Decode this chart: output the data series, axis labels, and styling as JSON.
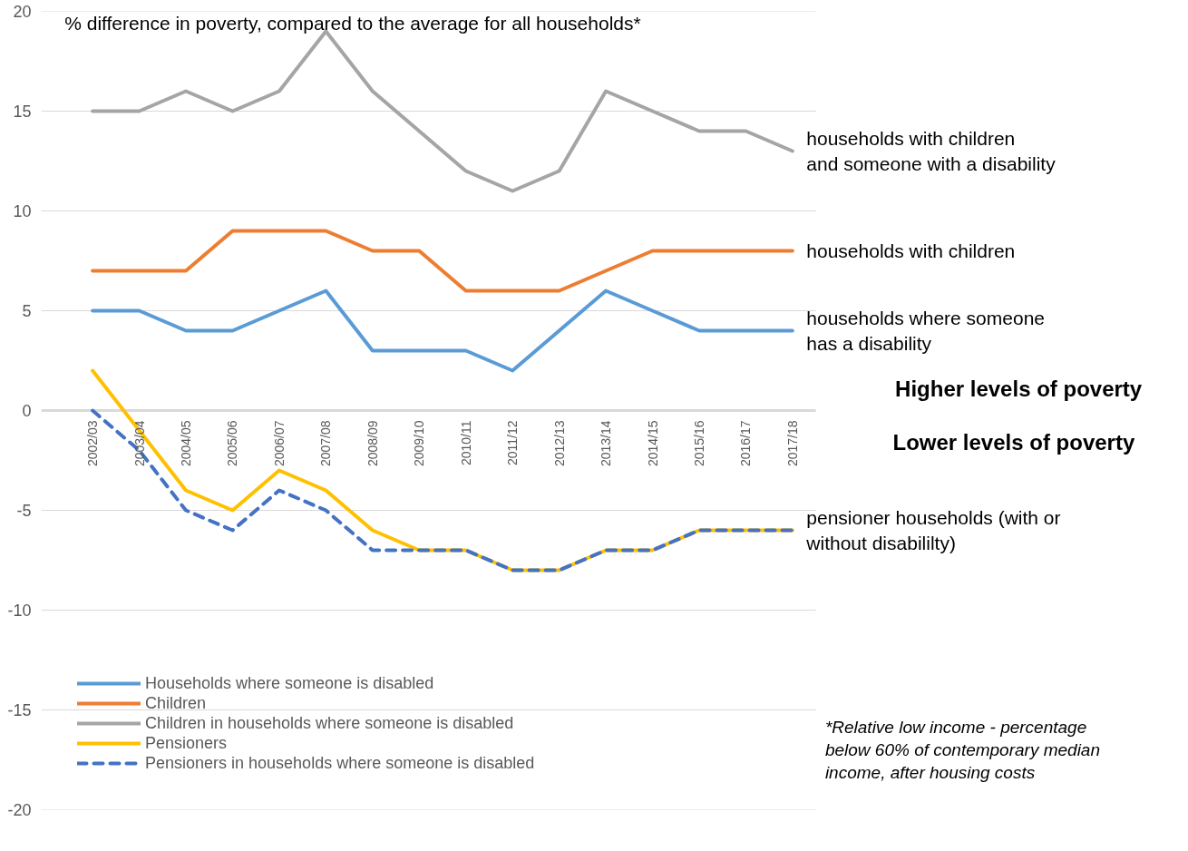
{
  "chart_data": {
    "type": "line",
    "title": "% difference in poverty, compared to the average for all households*",
    "categories": [
      "2002/03",
      "2003/04",
      "2004/05",
      "2005/06",
      "2006/07",
      "2007/08",
      "2008/09",
      "2009/10",
      "2010/11",
      "2011/12",
      "2012/13",
      "2013/14",
      "2014/15",
      "2015/16",
      "2016/17",
      "2017/18"
    ],
    "series": [
      {
        "name": "Households where someone is disabled",
        "color": "#5b9bd5",
        "values": [
          5,
          5,
          4,
          4,
          5,
          6,
          3,
          3,
          3,
          2,
          4,
          6,
          5,
          4,
          4,
          4
        ]
      },
      {
        "name": "Children",
        "color": "#ed7d31",
        "values": [
          7,
          7,
          7,
          9,
          9,
          9,
          8,
          8,
          6,
          6,
          6,
          7,
          8,
          8,
          8,
          8
        ]
      },
      {
        "name": "Children in households where someone is disabled",
        "color": "#a5a5a5",
        "values": [
          15,
          15,
          16,
          15,
          16,
          19,
          16,
          14,
          12,
          11,
          12,
          16,
          15,
          14,
          14,
          13
        ]
      },
      {
        "name": "Pensioners",
        "color": "#ffc000",
        "values": [
          2,
          -1,
          -4,
          -5,
          -3,
          -4,
          -6,
          -7,
          -7,
          -8,
          -8,
          -7,
          -7,
          -6,
          -6,
          -6
        ]
      },
      {
        "name": "Pensioners in households where someone is disabled",
        "color": "#4472c4",
        "line_style": "dashed",
        "values": [
          0,
          -2,
          -5,
          -6,
          -4,
          -5,
          -7,
          -7,
          -7,
          -8,
          -8,
          -7,
          -7,
          -6,
          -6,
          -6
        ]
      }
    ],
    "ylim": [
      -20,
      20
    ],
    "yticks": [
      -20,
      -15,
      -10,
      -5,
      0,
      5,
      10,
      15,
      20
    ],
    "grid": "y",
    "legend": "bottom left",
    "line_style": "solid",
    "annotations": [
      {
        "text": "households with children\nand someone with a disability",
        "x": "2017/18",
        "y": 13
      },
      {
        "text": "households with children",
        "x": "2017/18",
        "y": 8
      },
      {
        "text": "households where someone\nhas a disability",
        "x": "2017/18",
        "y": 4
      },
      {
        "text": "pensioner households (with or\nwithout disabililty)",
        "x": "2017/18",
        "y": -6
      },
      "Higher levels of poverty",
      "Lower levels of poverty",
      "*Relative low income - percentage\nbelow 60% of contemporary median\nincome, after housing costs"
    ]
  }
}
